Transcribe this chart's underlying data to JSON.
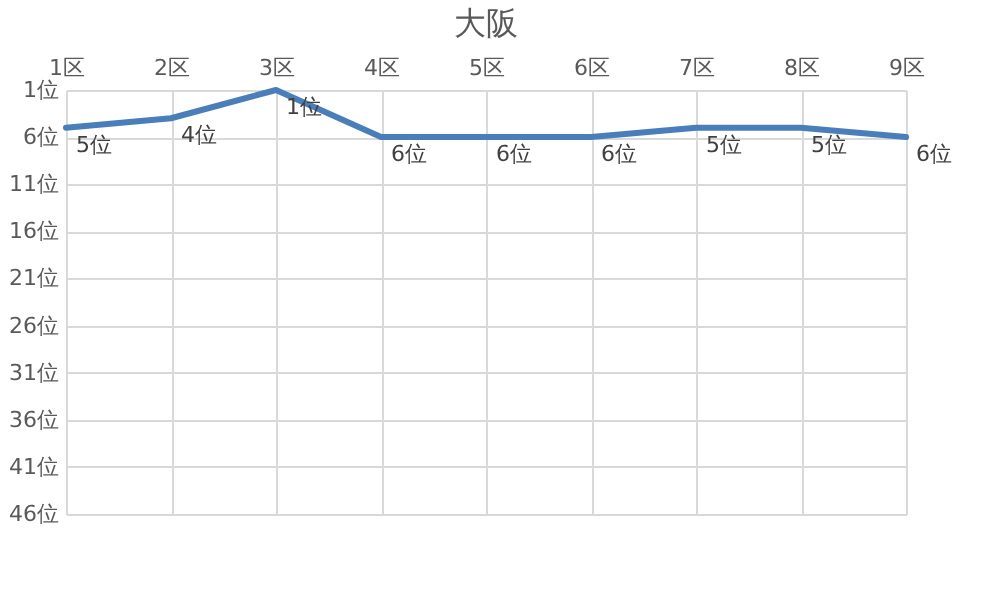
{
  "chart_data": {
    "type": "line",
    "title": "大阪",
    "categories": [
      "1区",
      "2区",
      "3区",
      "4区",
      "5区",
      "6区",
      "7区",
      "8区",
      "9区"
    ],
    "series": [
      {
        "color": "#4a7ebb",
        "values": [
          5,
          4,
          1,
          6,
          6,
          6,
          5,
          5,
          6
        ]
      }
    ],
    "value_labels": [
      "5位",
      "4位",
      "1位",
      "6位",
      "6位",
      "6位",
      "5位",
      "5位",
      "6位"
    ],
    "ylim": [
      46,
      1
    ],
    "yticks": [
      {
        "value": 1,
        "label": "1位"
      },
      {
        "value": 6,
        "label": "6位"
      },
      {
        "value": 11,
        "label": "11位"
      },
      {
        "value": 16,
        "label": "16位"
      },
      {
        "value": 21,
        "label": "21位"
      },
      {
        "value": 26,
        "label": "26位"
      },
      {
        "value": 31,
        "label": "31位"
      },
      {
        "value": 36,
        "label": "36位"
      },
      {
        "value": 41,
        "label": "41位"
      },
      {
        "value": 46,
        "label": "46位"
      }
    ],
    "grid": true,
    "marker": "none",
    "line_style": "solid"
  }
}
